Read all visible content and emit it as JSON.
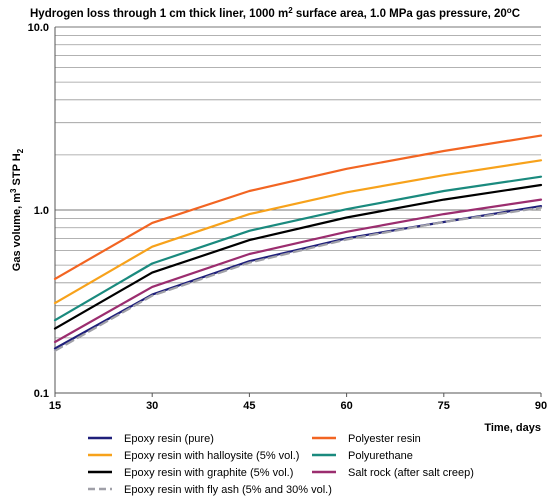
{
  "chart_data": {
    "type": "line",
    "title_main": "Hydrogen loss through 1 cm thick liner, 1000 m",
    "title_sup": "2",
    "title_rest": " surface area, 1.0 MPa gas pressure, 20",
    "title_deg": "o",
    "title_unit": "C",
    "xlabel": "Time, days",
    "ylabel_main": "Gas volume,  m",
    "ylabel_sup": "3",
    "ylabel_rest": " STP H",
    "ylabel_sub": "2",
    "x_scale": "linear",
    "y_scale": "log",
    "xlim": [
      15,
      90
    ],
    "ylim": [
      0.1,
      10
    ],
    "grid": "horizontal minor + major",
    "x_ticks": [
      15,
      30,
      45,
      60,
      75,
      90
    ],
    "x_tick_labels": [
      "15",
      "30",
      "45",
      "60",
      "75",
      "90"
    ],
    "y_major_ticks": [
      0.1,
      1,
      10
    ],
    "y_tick_labels": [
      "0.1",
      "1.0",
      "10.0"
    ],
    "legend_position": "bottom, two columns",
    "x": [
      15,
      30,
      45,
      60,
      75,
      90
    ],
    "series": [
      {
        "name": "Epoxy resin (pure)",
        "color": "#1f1f7a",
        "dash": false,
        "values": [
          0.175,
          0.345,
          0.525,
          0.7,
          0.86,
          1.05
        ]
      },
      {
        "name": "Polyester resin",
        "color": "#f26522",
        "dash": false,
        "values": [
          0.42,
          0.85,
          1.27,
          1.68,
          2.1,
          2.55
        ]
      },
      {
        "name": "Epoxy resin with halloysite (5% vol.)",
        "color": "#f7a21b",
        "dash": false,
        "values": [
          0.31,
          0.63,
          0.95,
          1.25,
          1.55,
          1.87
        ]
      },
      {
        "name": "Polyurethane",
        "color": "#1a8a7e",
        "dash": false,
        "values": [
          0.25,
          0.51,
          0.77,
          1.01,
          1.27,
          1.52
        ]
      },
      {
        "name": "Epoxy resin with graphite (5% vol.)",
        "color": "#000000",
        "dash": false,
        "values": [
          0.225,
          0.455,
          0.685,
          0.91,
          1.14,
          1.37
        ]
      },
      {
        "name": "Salt rock (after salt creep)",
        "color": "#9b2d6f",
        "dash": false,
        "values": [
          0.19,
          0.38,
          0.575,
          0.76,
          0.95,
          1.14
        ]
      },
      {
        "name": "Epoxy resin with fly ash (5% and 30% vol.)",
        "color": "#a0a0a8",
        "dash": true,
        "values": [
          0.17,
          0.34,
          0.515,
          0.69,
          0.86,
          1.03
        ]
      }
    ]
  }
}
